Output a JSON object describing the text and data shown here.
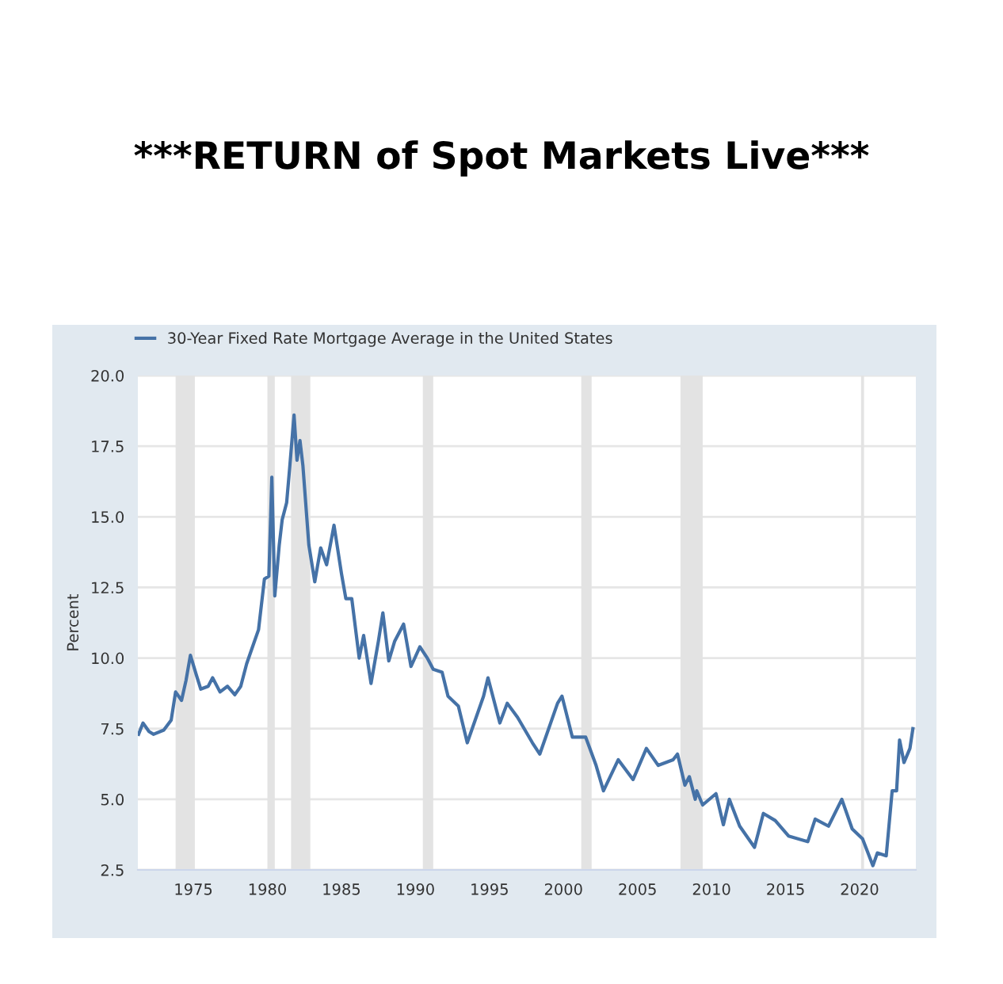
{
  "chart_data": {
    "type": "line",
    "title": "***RETURN of Spot Markets Live***",
    "ylabel": "Percent",
    "x": [
      1971.3,
      1971.6,
      1972.0,
      1972.3,
      1973.0,
      1973.5,
      1973.8,
      1974.2,
      1974.5,
      1974.8,
      1975.2,
      1975.5,
      1976.0,
      1976.3,
      1976.8,
      1977.3,
      1977.8,
      1978.2,
      1978.6,
      1979.0,
      1979.4,
      1979.8,
      1980.1,
      1980.3,
      1980.5,
      1980.8,
      1981.0,
      1981.3,
      1981.5,
      1981.8,
      1982.0,
      1982.2,
      1982.4,
      1982.8,
      1983.2,
      1983.6,
      1984.0,
      1984.5,
      1985.0,
      1985.3,
      1985.7,
      1986.2,
      1986.5,
      1987.0,
      1987.5,
      1987.8,
      1988.2,
      1988.6,
      1989.2,
      1989.7,
      1990.3,
      1990.8,
      1991.2,
      1991.8,
      1992.2,
      1992.9,
      1993.5,
      1994.6,
      1994.9,
      1995.7,
      1996.2,
      1996.9,
      1997.9,
      1998.4,
      1999.6,
      1999.9,
      2000.6,
      2001.5,
      2002.2,
      2002.7,
      2003.7,
      2004.7,
      2005.6,
      2006.4,
      2007.4,
      2007.7,
      2008.2,
      2008.5,
      2008.9,
      2009.0,
      2009.4,
      2010.3,
      2010.8,
      2011.2,
      2011.9,
      2012.9,
      2013.5,
      2014.3,
      2015.2,
      2016.5,
      2017.0,
      2017.9,
      2018.8,
      2019.5,
      2020.2,
      2020.9,
      2021.2,
      2021.8,
      2022.2,
      2022.5,
      2022.7,
      2023.0,
      2023.4,
      2023.6
    ],
    "series": [
      {
        "name": "30-Year Fixed Rate Mortgage Average in the United States",
        "color": "#4572a7",
        "values": [
          7.3,
          7.7,
          7.4,
          7.3,
          7.45,
          7.8,
          8.8,
          8.5,
          9.2,
          10.1,
          9.4,
          8.9,
          9.0,
          9.3,
          8.8,
          9.0,
          8.7,
          9.0,
          9.8,
          10.4,
          11.0,
          12.8,
          12.9,
          16.4,
          12.2,
          14.0,
          14.9,
          15.5,
          16.7,
          18.6,
          17.0,
          17.7,
          16.8,
          14.0,
          12.7,
          13.9,
          13.3,
          14.7,
          13.0,
          12.1,
          12.1,
          10.0,
          10.8,
          9.1,
          10.6,
          11.6,
          9.9,
          10.6,
          11.2,
          9.7,
          10.4,
          10.0,
          9.6,
          9.5,
          8.65,
          8.3,
          7.0,
          8.65,
          9.3,
          7.7,
          8.4,
          7.9,
          7.0,
          6.6,
          8.4,
          8.65,
          7.2,
          7.2,
          6.2,
          5.3,
          6.4,
          5.7,
          6.8,
          6.2,
          6.4,
          6.6,
          5.5,
          5.8,
          5.0,
          5.3,
          4.8,
          5.2,
          4.1,
          5.0,
          4.05,
          3.3,
          4.5,
          4.25,
          3.7,
          3.5,
          4.3,
          4.05,
          5.0,
          3.95,
          3.6,
          2.65,
          3.1,
          3.0,
          5.3,
          5.3,
          7.1,
          6.3,
          6.8,
          7.5
        ]
      }
    ],
    "xlim": [
      1971.25,
      2023.8
    ],
    "xticks": [
      1975,
      1980,
      1985,
      1990,
      1995,
      2000,
      2005,
      2010,
      2015,
      2020
    ],
    "ylim": [
      2.5,
      20
    ],
    "yticks": [
      2.5,
      {
        "value": 5,
        "label": "5.0"
      },
      7.5,
      {
        "value": 10,
        "label": "10.0"
      },
      12.5,
      {
        "value": 15,
        "label": "15.0"
      },
      17.5,
      {
        "value": 20,
        "label": "20.0"
      }
    ],
    "bands": [
      {
        "axis": "x",
        "from": 1973.8,
        "to": 1975.1,
        "color": "#e3e3e3"
      },
      {
        "axis": "x",
        "from": 1980.0,
        "to": 1980.5,
        "color": "#e3e3e3"
      },
      {
        "axis": "x",
        "from": 1981.6,
        "to": 1982.9,
        "color": "#e3e3e3"
      },
      {
        "axis": "x",
        "from": 1990.5,
        "to": 1991.2,
        "color": "#e3e3e3"
      },
      {
        "axis": "x",
        "from": 2001.2,
        "to": 2001.9,
        "color": "#e3e3e3"
      },
      {
        "axis": "x",
        "from": 2007.9,
        "to": 2009.4,
        "color": "#e3e3e3"
      },
      {
        "axis": "x",
        "from": 2020.1,
        "to": 2020.3,
        "color": "#e3e3e3"
      }
    ],
    "grid": "y",
    "legend": "top left",
    "line_style": "solid",
    "marker": "none"
  }
}
